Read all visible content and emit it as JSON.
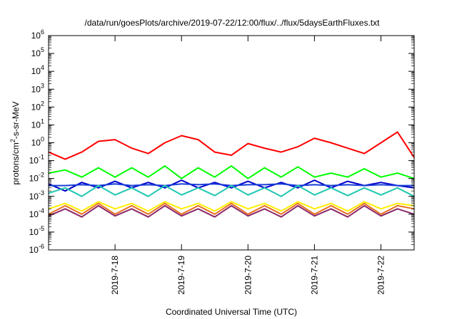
{
  "chart_data": {
    "type": "line",
    "title": "/data/run/goesPlots/archive/2019-07-22/12:00/flux/../flux/5daysEarthFluxes.txt",
    "xlabel": "Coordinated Universal Time (UTC)",
    "ylabel": {
      "base": "protons/cm",
      "sup": "2",
      "rest": "-s-sr-MeV"
    },
    "y_scale": "log",
    "ylim": [
      1e-06,
      1000000.0
    ],
    "y_ticks": [
      {
        "base": "10",
        "exp": "-6",
        "value": -6
      },
      {
        "base": "10",
        "exp": "-5",
        "value": -5
      },
      {
        "base": "10",
        "exp": "-4",
        "value": -4
      },
      {
        "base": "10",
        "exp": "-3",
        "value": -3
      },
      {
        "base": "10",
        "exp": "-2",
        "value": -2
      },
      {
        "base": "10",
        "exp": "-1",
        "value": -1
      },
      {
        "base": "10",
        "exp": "0",
        "value": 0
      },
      {
        "base": "10",
        "exp": "1",
        "value": 1
      },
      {
        "base": "10",
        "exp": "2",
        "value": 2
      },
      {
        "base": "10",
        "exp": "3",
        "value": 3
      },
      {
        "base": "10",
        "exp": "4",
        "value": 4
      },
      {
        "base": "10",
        "exp": "5",
        "value": 5
      },
      {
        "base": "10",
        "exp": "6",
        "value": 6
      }
    ],
    "xlim": [
      "2019-07-17 00:00",
      "2019-07-22 12:00"
    ],
    "x_ticks": [
      "2019-7-18",
      "2019-7-19",
      "2019-7-20",
      "2019-7-21",
      "2019-7-22"
    ],
    "grid": false,
    "legend": "none",
    "x": [
      "2019-07-17 00:00",
      "2019-07-17 06:00",
      "2019-07-17 12:00",
      "2019-07-17 18:00",
      "2019-07-18 00:00",
      "2019-07-18 06:00",
      "2019-07-18 12:00",
      "2019-07-18 18:00",
      "2019-07-19 00:00",
      "2019-07-19 06:00",
      "2019-07-19 12:00",
      "2019-07-19 18:00",
      "2019-07-20 00:00",
      "2019-07-20 06:00",
      "2019-07-20 12:00",
      "2019-07-20 18:00",
      "2019-07-21 00:00",
      "2019-07-21 06:00",
      "2019-07-21 12:00",
      "2019-07-21 18:00",
      "2019-07-22 00:00",
      "2019-07-22 06:00",
      "2019-07-22 12:00"
    ],
    "series": [
      {
        "color": "#ff0000",
        "values": [
          0.3,
          0.12,
          0.3,
          1.2,
          1.5,
          0.5,
          0.25,
          1.0,
          2.5,
          1.5,
          0.3,
          0.2,
          0.9,
          0.5,
          0.3,
          0.6,
          1.8,
          1.0,
          0.5,
          0.25,
          1.0,
          4.0,
          0.15
        ]
      },
      {
        "color": "#00ff00",
        "values": [
          0.02,
          0.03,
          0.012,
          0.04,
          0.012,
          0.04,
          0.012,
          0.05,
          0.01,
          0.04,
          0.012,
          0.05,
          0.01,
          0.04,
          0.012,
          0.045,
          0.012,
          0.02,
          0.012,
          0.035,
          0.012,
          0.02,
          0.01
        ]
      },
      {
        "color": "#0000cc",
        "values": [
          0.005,
          0.002,
          0.006,
          0.003,
          0.007,
          0.003,
          0.006,
          0.003,
          0.008,
          0.003,
          0.006,
          0.003,
          0.007,
          0.003,
          0.006,
          0.003,
          0.008,
          0.003,
          0.007,
          0.004,
          0.006,
          0.004,
          0.003
        ]
      },
      {
        "color": "#1a3fd6",
        "values": [
          0.004,
          0.004,
          0.0045,
          0.004,
          0.005,
          0.004,
          0.0045,
          0.004,
          0.005,
          0.0045,
          0.005,
          0.004,
          0.0045,
          0.0045,
          0.005,
          0.004,
          0.0045,
          0.004,
          0.0045,
          0.004,
          0.0045,
          0.004,
          0.004
        ]
      },
      {
        "color": "#20c8b0",
        "values": [
          0.0015,
          0.003,
          0.001,
          0.004,
          0.0012,
          0.003,
          0.001,
          0.004,
          0.0012,
          0.003,
          0.0011,
          0.004,
          0.0012,
          0.003,
          0.001,
          0.004,
          0.0012,
          0.003,
          0.0011,
          0.003,
          0.0012,
          0.003,
          0.001
        ]
      },
      {
        "color": "#ffee00",
        "values": [
          0.0002,
          0.0004,
          0.00015,
          0.0005,
          0.0002,
          0.0004,
          0.00015,
          0.0005,
          0.0002,
          0.0004,
          0.00015,
          0.0005,
          0.0002,
          0.0004,
          0.00015,
          0.0005,
          0.0002,
          0.0004,
          0.00015,
          0.0005,
          0.0002,
          0.0004,
          0.0003
        ]
      },
      {
        "color": "#e87020",
        "values": [
          0.0001,
          0.0003,
          0.0001,
          0.0004,
          0.0001,
          0.0003,
          0.0001,
          0.0004,
          0.0001,
          0.0003,
          0.0001,
          0.0004,
          0.0001,
          0.0003,
          0.0001,
          0.0004,
          0.0001,
          0.0003,
          0.0001,
          0.0004,
          0.0001,
          0.0003,
          0.0002
        ]
      },
      {
        "color": "#8b2a6b",
        "values": [
          8e-05,
          0.0002,
          7e-05,
          0.0003,
          8e-05,
          0.0002,
          7e-05,
          0.0003,
          8e-05,
          0.0002,
          7e-05,
          0.0003,
          8e-05,
          0.0002,
          7e-05,
          0.0003,
          8e-05,
          0.0002,
          7e-05,
          0.0003,
          8e-05,
          0.0002,
          0.0001
        ]
      }
    ]
  }
}
